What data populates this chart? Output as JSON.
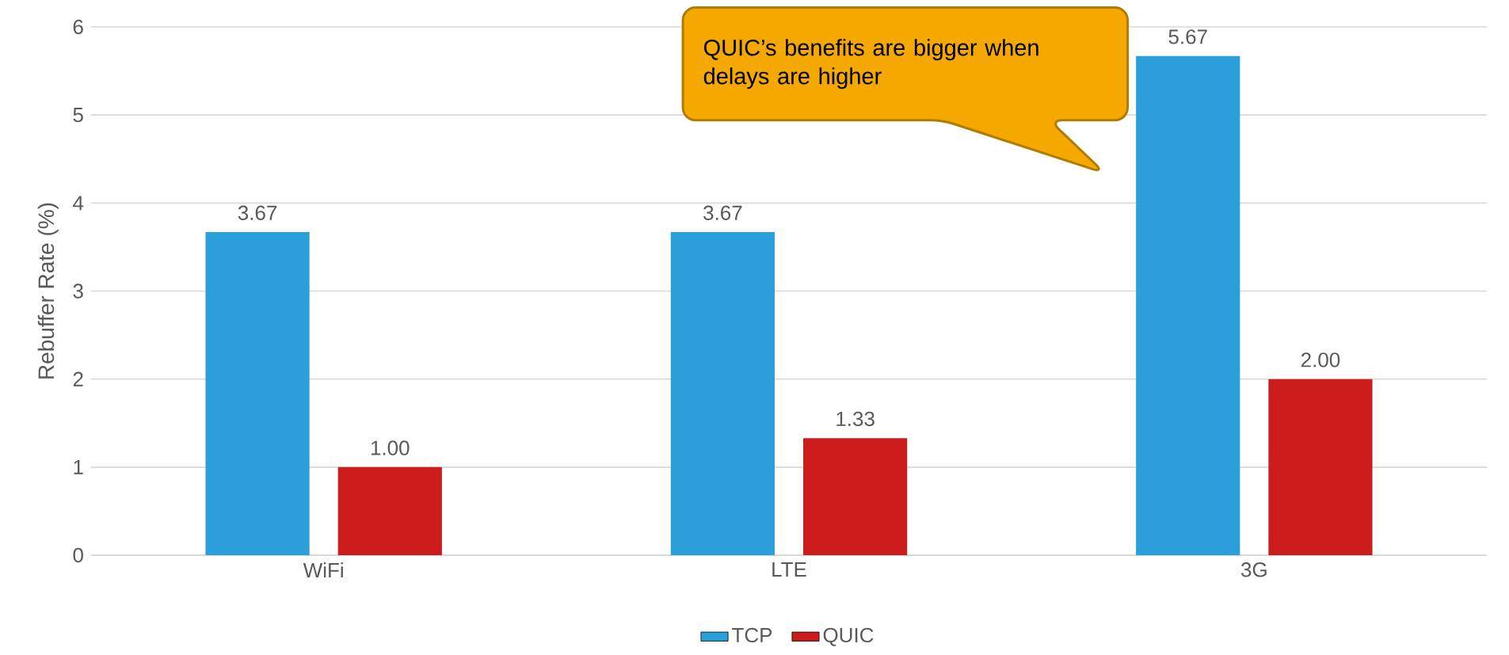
{
  "chart_data": {
    "type": "bar",
    "ylabel": "Rebuffer Rate (%)",
    "categories": [
      "WiFi",
      "LTE",
      "3G"
    ],
    "series": [
      {
        "name": "TCP",
        "color": "#2b9fd9",
        "values": [
          3.67,
          3.67,
          5.67
        ],
        "value_labels": [
          "3.67",
          "3.67",
          "5.67"
        ]
      },
      {
        "name": "QUIC",
        "color": "#cc1c1c",
        "values": [
          1.0,
          1.33,
          2.0
        ],
        "value_labels": [
          "1.00",
          "1.33",
          "2.00"
        ]
      }
    ],
    "ylim": [
      0,
      6
    ],
    "yticks": [
      0,
      1,
      2,
      3,
      4,
      5,
      6
    ],
    "grid": "y",
    "legend": "bottom",
    "annotations": [
      "QUIC’s benefits are bigger when delays are higher"
    ]
  }
}
